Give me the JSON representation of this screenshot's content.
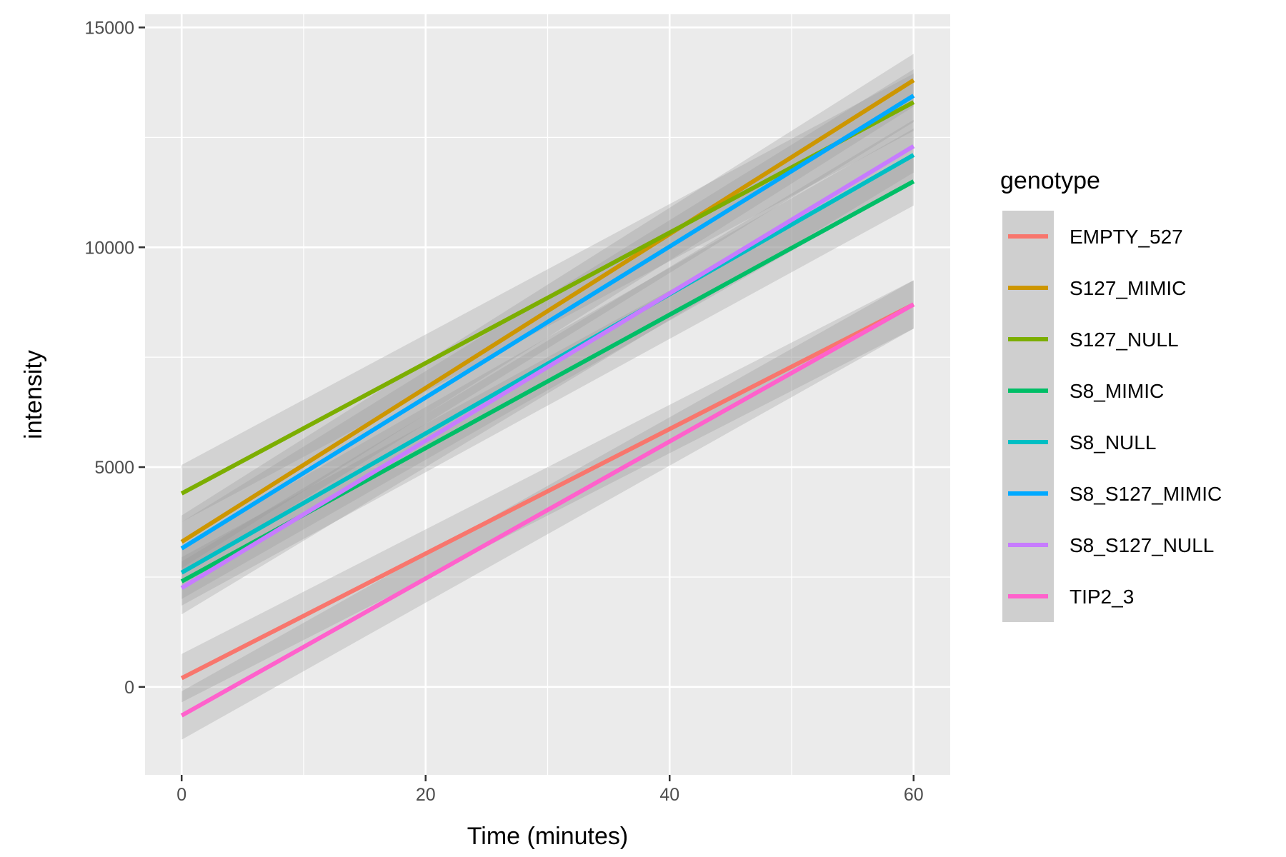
{
  "chart_data": {
    "type": "line",
    "xlabel": "Time (minutes)",
    "ylabel": "intensity",
    "xlim": [
      -3,
      63
    ],
    "ylim": [
      -2000,
      15300
    ],
    "x_ticks": [
      0,
      20,
      40,
      60
    ],
    "y_ticks": [
      0,
      5000,
      10000,
      15000
    ],
    "grid": true,
    "legend": {
      "title": "genotype",
      "position": "right"
    },
    "band_color": "#999999",
    "series": [
      {
        "name": "EMPTY_527",
        "color": "#F8766D",
        "x": [
          0,
          60
        ],
        "y": [
          200,
          8700
        ],
        "ci": [
          550,
          550
        ]
      },
      {
        "name": "S127_MIMIC",
        "color": "#CD9600",
        "x": [
          0,
          60
        ],
        "y": [
          3300,
          13800
        ],
        "ci": [
          600,
          600
        ]
      },
      {
        "name": "S127_NULL",
        "color": "#7CAE00",
        "x": [
          0,
          60
        ],
        "y": [
          4400,
          13300
        ],
        "ci": [
          650,
          650
        ]
      },
      {
        "name": "S8_MIMIC",
        "color": "#00BE67",
        "x": [
          0,
          60
        ],
        "y": [
          2400,
          11500
        ],
        "ci": [
          550,
          550
        ]
      },
      {
        "name": "S8_NULL",
        "color": "#00BFC4",
        "x": [
          0,
          60
        ],
        "y": [
          2600,
          12100
        ],
        "ci": [
          600,
          600
        ]
      },
      {
        "name": "S8_S127_MIMIC",
        "color": "#00A9FF",
        "x": [
          0,
          60
        ],
        "y": [
          3150,
          13450
        ],
        "ci": [
          600,
          600
        ]
      },
      {
        "name": "S8_S127_NULL",
        "color": "#C77CFF",
        "x": [
          0,
          60
        ],
        "y": [
          2250,
          12300
        ],
        "ci": [
          600,
          600
        ]
      },
      {
        "name": "TIP2_3",
        "color": "#FF61CC",
        "x": [
          0,
          60
        ],
        "y": [
          -650,
          8700
        ],
        "ci": [
          550,
          550
        ]
      }
    ]
  }
}
